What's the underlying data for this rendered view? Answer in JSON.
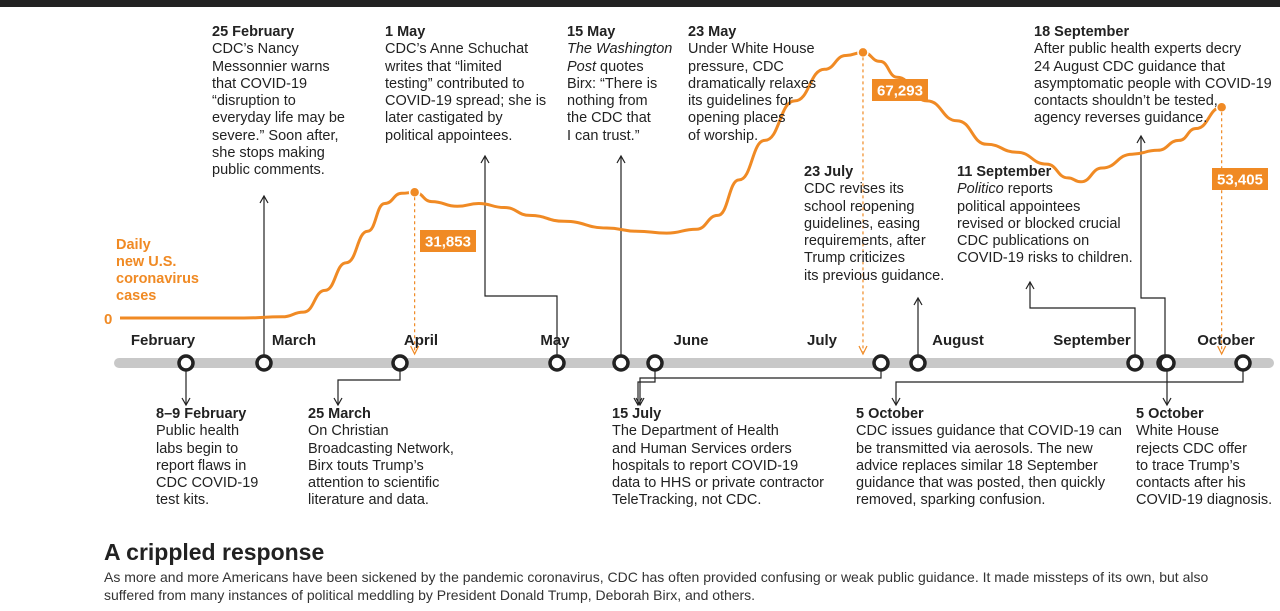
{
  "chart_data": {
    "type": "line",
    "title": "A crippled response",
    "subtitle": "As more and more Americans have been sickened by the pandemic coronavirus, CDC has often provided confusing or weak public guidance. It made missteps of its own, but also suffered from many instances of political meddling by President Donald Trump, Deborah Birx, and others.",
    "ylabel": "Daily\nnew U.S.\ncoronavirus\ncases",
    "yzero_label": "0",
    "series_color": "#f08a24",
    "timeline_color": "#c8c8c8",
    "months": [
      "February",
      "March",
      "April",
      "May",
      "June",
      "July",
      "August",
      "September",
      "October"
    ],
    "series": [
      {
        "values": [
          [
            "2020-02-01",
            0
          ],
          [
            "2020-02-15",
            0
          ],
          [
            "2020-03-01",
            0
          ],
          [
            "2020-03-10",
            300
          ],
          [
            "2020-03-15",
            1500
          ],
          [
            "2020-03-20",
            7000
          ],
          [
            "2020-03-25",
            14000
          ],
          [
            "2020-03-30",
            22000
          ],
          [
            "2020-04-03",
            29000
          ],
          [
            "2020-04-07",
            31600
          ],
          [
            "2020-04-10",
            31853
          ],
          [
            "2020-04-14",
            29500
          ],
          [
            "2020-04-20",
            28300
          ],
          [
            "2020-04-25",
            29000
          ],
          [
            "2020-05-01",
            28000
          ],
          [
            "2020-05-07",
            26000
          ],
          [
            "2020-05-15",
            24500
          ],
          [
            "2020-05-25",
            22800
          ],
          [
            "2020-06-01",
            22000
          ],
          [
            "2020-06-08",
            21500
          ],
          [
            "2020-06-15",
            22500
          ],
          [
            "2020-06-20",
            26000
          ],
          [
            "2020-06-25",
            35000
          ],
          [
            "2020-07-01",
            45000
          ],
          [
            "2020-07-08",
            55000
          ],
          [
            "2020-07-15",
            63000
          ],
          [
            "2020-07-20",
            66500
          ],
          [
            "2020-07-24",
            67293
          ],
          [
            "2020-07-28",
            65000
          ],
          [
            "2020-08-01",
            61000
          ],
          [
            "2020-08-08",
            55000
          ],
          [
            "2020-08-15",
            50000
          ],
          [
            "2020-08-22",
            44000
          ],
          [
            "2020-08-29",
            42000
          ],
          [
            "2020-09-05",
            39000
          ],
          [
            "2020-09-10",
            35500
          ],
          [
            "2020-09-13",
            34500
          ],
          [
            "2020-09-18",
            38000
          ],
          [
            "2020-09-25",
            41500
          ],
          [
            "2020-10-01",
            42500
          ],
          [
            "2020-10-06",
            45000
          ],
          [
            "2020-10-10",
            48000
          ],
          [
            "2020-10-16",
            53405
          ]
        ]
      }
    ],
    "peak_labels": [
      {
        "date": "2020-04-10",
        "label": "31,853"
      },
      {
        "date": "2020-07-24",
        "label": "67,293"
      },
      {
        "date": "2020-10-16",
        "label": "53,405"
      }
    ],
    "events": [
      {
        "date": "2020-02-25"
      },
      {
        "date": "2020-02-08"
      },
      {
        "date": "2020-03-25"
      },
      {
        "date": "2020-05-01"
      },
      {
        "date": "2020-05-15"
      },
      {
        "date": "2020-05-23"
      },
      {
        "date": "2020-07-15"
      },
      {
        "date": "2020-07-23"
      },
      {
        "date": "2020-09-11"
      },
      {
        "date": "2020-09-18"
      },
      {
        "date": "2020-10-05"
      },
      {
        "date": "2020-10-05"
      }
    ]
  },
  "annotations": {
    "feb25": {
      "date": "25 February",
      "text": "CDC’s Nancy\nMessonnier warns\nthat COVID-19\n“disruption to\neveryday life may be\nsevere.” Soon after,\nshe stops making\npublic comments."
    },
    "may1": {
      "date": "1 May",
      "text": "CDC’s Anne Schuchat\nwrites that “limited\ntesting” contributed to\nCOVID-19 spread; she is\nlater castigated by\npolitical appointees."
    },
    "may15": {
      "date": "15 May",
      "italic": "The Washington\nPost",
      "text": " quotes\nBirx: “There is\nnothing from\nthe CDC that\nI can trust.”"
    },
    "may23": {
      "date": "23 May",
      "text": "Under White House\npressure, CDC\ndramatically relaxes\nits guidelines for\nopening places\nof worship."
    },
    "jul23": {
      "date": "23 July",
      "text": "CDC revises its\nschool reopening\nguidelines, easing\nrequirements, after\nTrump criticizes\nits previous guidance."
    },
    "sep18": {
      "date": "18 September",
      "text": "After public health experts decry\n24 August CDC guidance that\nasymptomatic people with COVID-19\ncontacts shouldn’t be tested,\nagency reverses guidance."
    },
    "sep11": {
      "date": "11 September",
      "italic": "Politico",
      "text": " reports\npolitical appointees\nrevised or blocked crucial\nCDC publications on\nCOVID-19 risks to children."
    },
    "feb8": {
      "date": "8–9 February",
      "text": "Public health\nlabs begin to\nreport flaws in\nCDC COVID-19\ntest kits."
    },
    "mar25": {
      "date": "25 March",
      "text": "On Christian\nBroadcasting Network,\nBirx touts Trump’s\nattention to scientific\nliterature and data."
    },
    "jul15": {
      "date": "15 July",
      "text": "The Department of Health\nand Human Services orders\nhospitals to report COVID-19\ndata to HHS or private contractor\nTeleTracking, not CDC."
    },
    "oct5a": {
      "date": "5 October",
      "text": "CDC issues guidance that COVID-19 can\nbe transmitted via aerosols. The new\nadvice replaces similar 18 September\nguidance that was posted, then quickly\nremoved, sparking confusion."
    },
    "oct5b": {
      "date": "5 October",
      "text": "White House\nrejects CDC offer\nto trace Trump’s\ncontacts after his\nCOVID-19 diagnosis."
    }
  }
}
